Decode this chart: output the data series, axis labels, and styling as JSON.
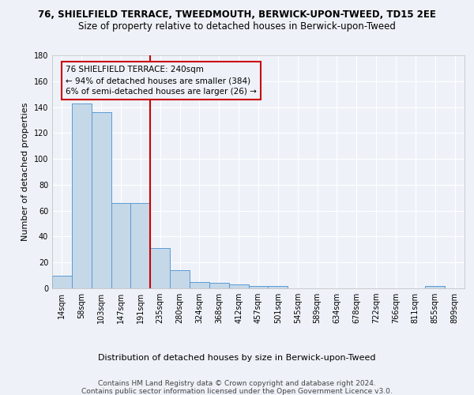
{
  "title": "76, SHIELFIELD TERRACE, TWEEDMOUTH, BERWICK-UPON-TWEED, TD15 2EE",
  "subtitle": "Size of property relative to detached houses in Berwick-upon-Tweed",
  "xlabel": "Distribution of detached houses by size in Berwick-upon-Tweed",
  "ylabel": "Number of detached properties",
  "categories": [
    "14sqm",
    "58sqm",
    "103sqm",
    "147sqm",
    "191sqm",
    "235sqm",
    "280sqm",
    "324sqm",
    "368sqm",
    "412sqm",
    "457sqm",
    "501sqm",
    "545sqm",
    "589sqm",
    "634sqm",
    "678sqm",
    "722sqm",
    "766sqm",
    "811sqm",
    "855sqm",
    "899sqm"
  ],
  "values": [
    10,
    143,
    136,
    66,
    66,
    31,
    14,
    5,
    4,
    3,
    2,
    2,
    0,
    0,
    0,
    0,
    0,
    0,
    0,
    2,
    0
  ],
  "bar_color": "#c5d8e8",
  "bar_edge_color": "#5b9bd5",
  "vline_idx": 4.5,
  "vline_color": "#cc0000",
  "annotation_line1": "76 SHIELFIELD TERRACE: 240sqm",
  "annotation_line2": "← 94% of detached houses are smaller (384)",
  "annotation_line3": "6% of semi-detached houses are larger (26) →",
  "annotation_box_color": "#cc0000",
  "ylim": [
    0,
    180
  ],
  "yticks": [
    0,
    20,
    40,
    60,
    80,
    100,
    120,
    140,
    160,
    180
  ],
  "footer_line1": "Contains HM Land Registry data © Crown copyright and database right 2024.",
  "footer_line2": "Contains public sector information licensed under the Open Government Licence v3.0.",
  "title_fontsize": 8.5,
  "subtitle_fontsize": 8.5,
  "axis_label_fontsize": 8,
  "tick_fontsize": 7,
  "annotation_fontsize": 7.5,
  "footer_fontsize": 6.5,
  "background_color": "#eef2f8",
  "grid_color": "#ffffff"
}
